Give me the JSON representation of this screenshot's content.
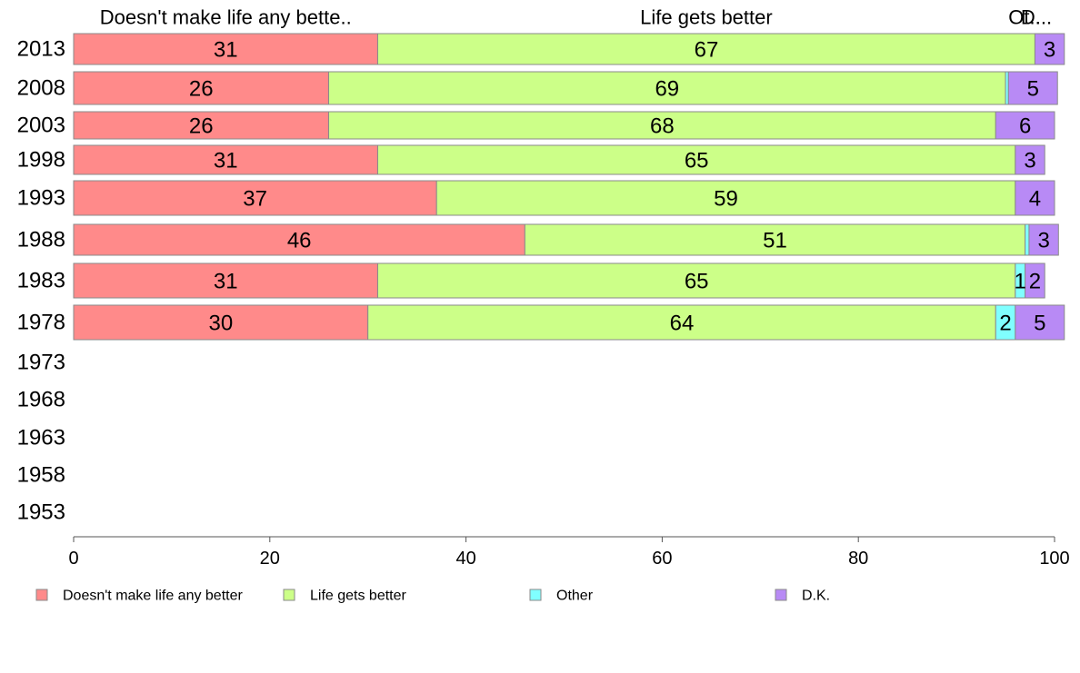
{
  "chart_data": {
    "type": "bar",
    "orientation": "horizontal",
    "stacked": true,
    "categories": [
      "2013",
      "2008",
      "2003",
      "1998",
      "1993",
      "1988",
      "1983",
      "1978",
      "1973",
      "1968",
      "1963",
      "1958",
      "1953"
    ],
    "series": [
      {
        "name": "Doesn't make life any better",
        "color": "#FF8A8A",
        "values": [
          31,
          26,
          26,
          31,
          37,
          46,
          31,
          30,
          null,
          null,
          null,
          null,
          null
        ],
        "labels": [
          "31",
          "26",
          "26",
          "31",
          "37",
          "46",
          "31",
          "30",
          "",
          "",
          "",
          "",
          ""
        ]
      },
      {
        "name": "Life gets better",
        "color": "#CCFF88",
        "values": [
          67,
          69,
          68,
          65,
          59,
          51,
          65,
          64,
          null,
          null,
          null,
          null,
          null
        ],
        "labels": [
          "67",
          "69",
          "68",
          "65",
          "59",
          "51",
          "65",
          "64",
          "",
          "",
          "",
          "",
          ""
        ]
      },
      {
        "name": "Other",
        "color": "#80FFFF",
        "values": [
          0,
          0.3,
          0,
          0,
          0,
          0.4,
          1,
          2,
          null,
          null,
          null,
          null,
          null
        ],
        "labels": [
          "",
          "",
          "",
          "",
          "",
          "",
          "1",
          "2",
          "",
          "",
          "",
          "",
          ""
        ]
      },
      {
        "name": "D.K.",
        "color": "#B88AF5",
        "values": [
          3,
          5,
          6,
          3,
          4,
          3,
          2,
          5,
          null,
          null,
          null,
          null,
          null
        ],
        "labels": [
          "3",
          "5",
          "6",
          "3",
          "4",
          "3",
          "2",
          "5",
          "",
          "",
          "",
          "",
          ""
        ]
      }
    ],
    "top_labels": [
      "Doesn't make life any bette..",
      "Life gets better",
      "Ot..",
      "D..."
    ],
    "x_ticks": [
      "0",
      "20",
      "40",
      "60",
      "80",
      "100"
    ],
    "xlim": [
      0,
      100
    ],
    "grid": false,
    "legend_position": "bottom"
  }
}
